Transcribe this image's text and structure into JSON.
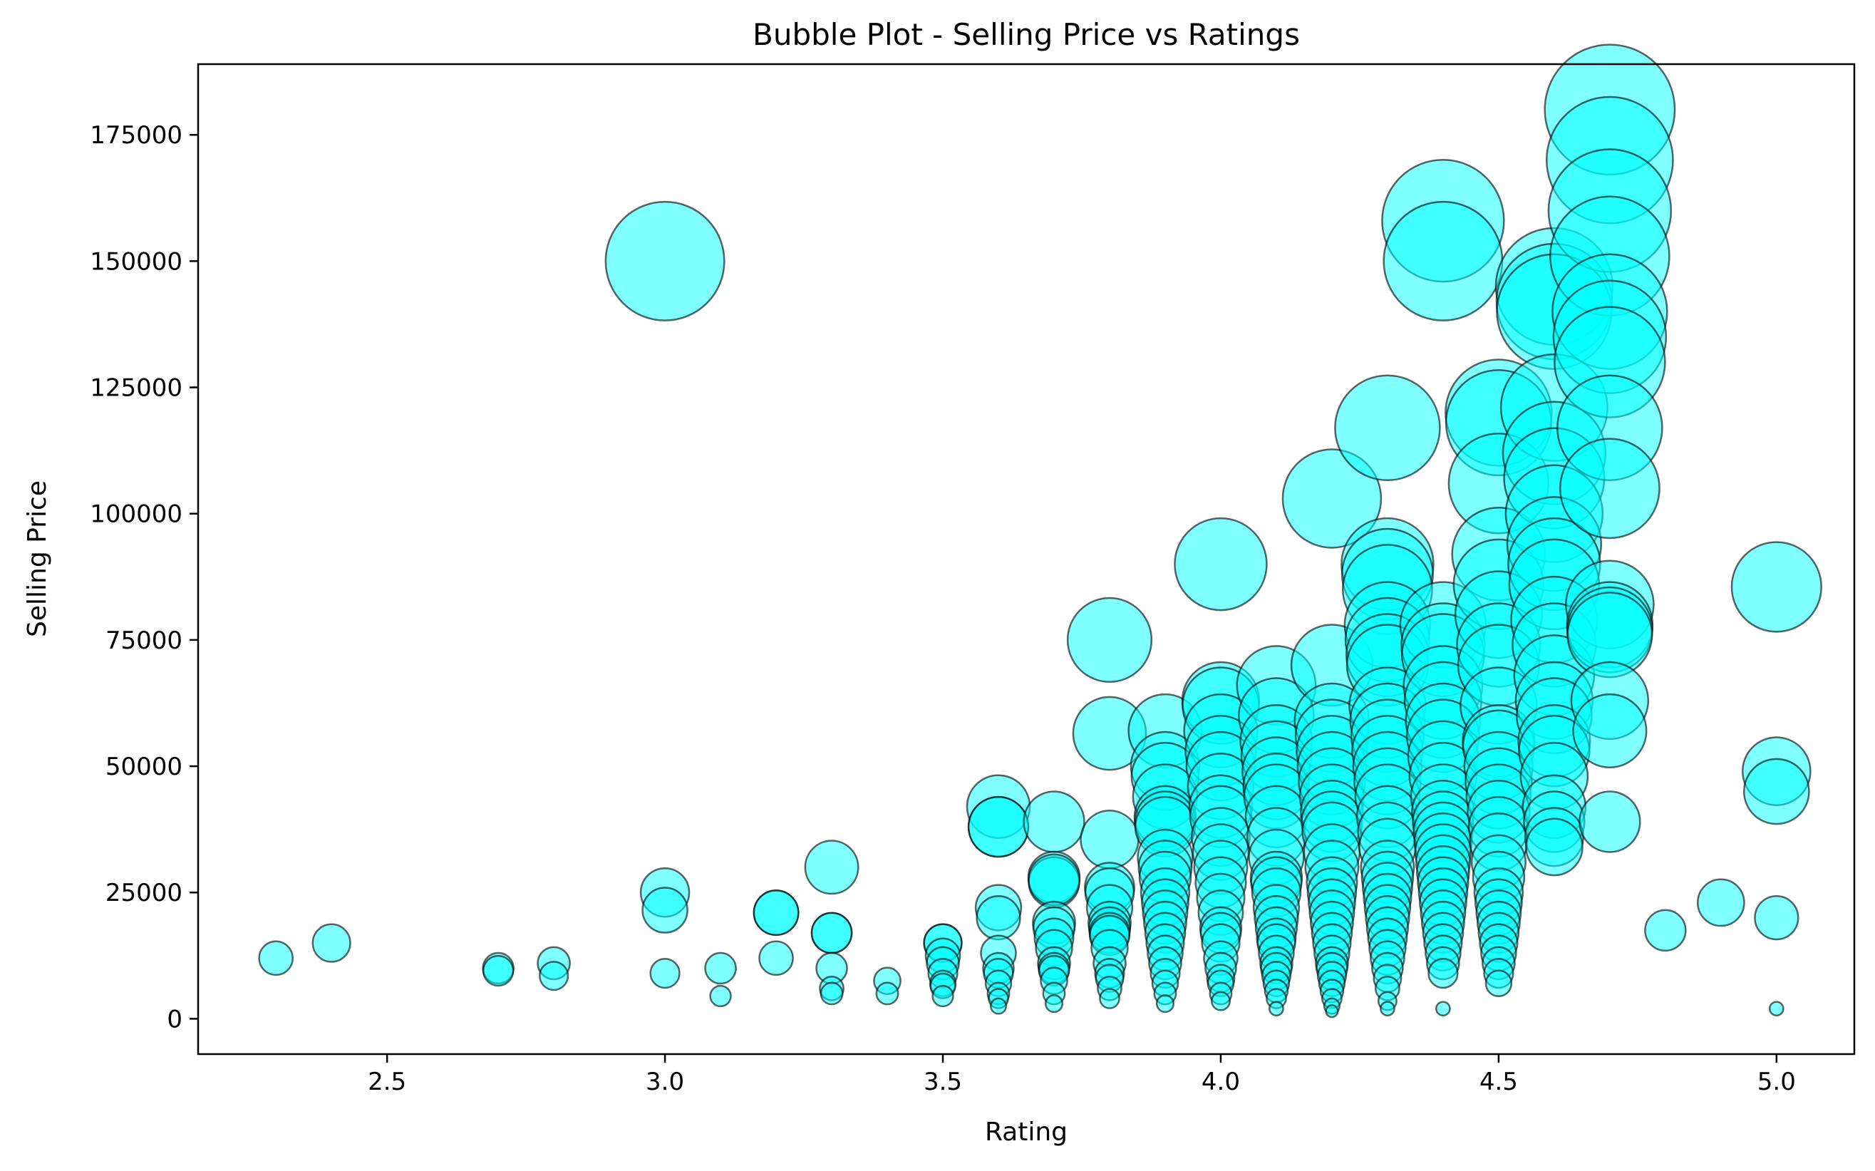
{
  "chart_data": {
    "type": "scatter",
    "variant": "bubble",
    "title": "Bubble Plot - Selling Price vs Ratings",
    "xlabel": "Rating",
    "ylabel": "Selling Price",
    "xlim": [
      2.16,
      5.14
    ],
    "ylim": [
      -7000,
      189000
    ],
    "xticks": [
      2.5,
      3.0,
      3.5,
      4.0,
      4.5,
      5.0
    ],
    "xtick_labels": [
      "2.5",
      "3.0",
      "3.5",
      "4.0",
      "4.5",
      "5.0"
    ],
    "yticks": [
      0,
      25000,
      50000,
      75000,
      100000,
      125000,
      150000,
      175000
    ],
    "ytick_labels": [
      "0",
      "25000",
      "50000",
      "75000",
      "100000",
      "125000",
      "150000",
      "175000"
    ],
    "grid": false,
    "legend": "none",
    "colors": {
      "fill": "#00ffff",
      "edge": "#000000",
      "alpha": 0.5
    },
    "points": [
      {
        "x": 2.3,
        "y": 12000
      },
      {
        "x": 2.4,
        "y": 15000
      },
      {
        "x": 2.7,
        "y": 10000
      },
      {
        "x": 2.7,
        "y": 9500
      },
      {
        "x": 2.8,
        "y": 11000
      },
      {
        "x": 2.8,
        "y": 8500
      },
      {
        "x": 3.0,
        "y": 150000
      },
      {
        "x": 3.0,
        "y": 25000
      },
      {
        "x": 3.0,
        "y": 21500
      },
      {
        "x": 3.0,
        "y": 9000
      },
      {
        "x": 3.1,
        "y": 10000
      },
      {
        "x": 3.1,
        "y": 4500
      },
      {
        "x": 3.2,
        "y": 21000
      },
      {
        "x": 3.2,
        "y": 21000
      },
      {
        "x": 3.2,
        "y": 12000
      },
      {
        "x": 3.3,
        "y": 30000
      },
      {
        "x": 3.3,
        "y": 17000
      },
      {
        "x": 3.3,
        "y": 17000
      },
      {
        "x": 3.3,
        "y": 10000
      },
      {
        "x": 3.3,
        "y": 6000
      },
      {
        "x": 3.3,
        "y": 5000
      },
      {
        "x": 3.4,
        "y": 7500
      },
      {
        "x": 3.4,
        "y": 5000
      },
      {
        "x": 3.5,
        "y": 15000
      },
      {
        "x": 3.5,
        "y": 15000
      },
      {
        "x": 3.5,
        "y": 12500
      },
      {
        "x": 3.5,
        "y": 11000
      },
      {
        "x": 3.5,
        "y": 9000
      },
      {
        "x": 3.5,
        "y": 7000
      },
      {
        "x": 3.5,
        "y": 6500
      },
      {
        "x": 3.5,
        "y": 4500
      },
      {
        "x": 3.6,
        "y": 42000
      },
      {
        "x": 3.6,
        "y": 38000
      },
      {
        "x": 3.6,
        "y": 38000
      },
      {
        "x": 3.6,
        "y": 22000
      },
      {
        "x": 3.6,
        "y": 20000
      },
      {
        "x": 3.6,
        "y": 13000
      },
      {
        "x": 3.6,
        "y": 10000
      },
      {
        "x": 3.6,
        "y": 9000
      },
      {
        "x": 3.6,
        "y": 7000
      },
      {
        "x": 3.6,
        "y": 5000
      },
      {
        "x": 3.6,
        "y": 4000
      },
      {
        "x": 3.6,
        "y": 2500
      },
      {
        "x": 3.7,
        "y": 39000
      },
      {
        "x": 3.7,
        "y": 28000
      },
      {
        "x": 3.7,
        "y": 27000
      },
      {
        "x": 3.7,
        "y": 27500
      },
      {
        "x": 3.7,
        "y": 19000
      },
      {
        "x": 3.7,
        "y": 18000
      },
      {
        "x": 3.7,
        "y": 16000
      },
      {
        "x": 3.7,
        "y": 14000
      },
      {
        "x": 3.7,
        "y": 11000
      },
      {
        "x": 3.7,
        "y": 10000
      },
      {
        "x": 3.7,
        "y": 9500
      },
      {
        "x": 3.7,
        "y": 7500
      },
      {
        "x": 3.7,
        "y": 5000
      },
      {
        "x": 3.7,
        "y": 3000
      },
      {
        "x": 3.8,
        "y": 75000
      },
      {
        "x": 3.8,
        "y": 56500
      },
      {
        "x": 3.8,
        "y": 35500
      },
      {
        "x": 3.8,
        "y": 26000
      },
      {
        "x": 3.8,
        "y": 25000
      },
      {
        "x": 3.8,
        "y": 22000
      },
      {
        "x": 3.8,
        "y": 19000
      },
      {
        "x": 3.8,
        "y": 18000
      },
      {
        "x": 3.8,
        "y": 17000
      },
      {
        "x": 3.8,
        "y": 16500
      },
      {
        "x": 3.8,
        "y": 14000
      },
      {
        "x": 3.8,
        "y": 11000
      },
      {
        "x": 3.8,
        "y": 9000
      },
      {
        "x": 3.8,
        "y": 8000
      },
      {
        "x": 3.8,
        "y": 6000
      },
      {
        "x": 3.8,
        "y": 4000
      },
      {
        "x": 3.9,
        "y": 57000
      },
      {
        "x": 3.9,
        "y": 50000
      },
      {
        "x": 3.9,
        "y": 48000
      },
      {
        "x": 3.9,
        "y": 44000
      },
      {
        "x": 3.9,
        "y": 40000
      },
      {
        "x": 3.9,
        "y": 39000
      },
      {
        "x": 3.9,
        "y": 38000
      },
      {
        "x": 3.9,
        "y": 32000
      },
      {
        "x": 3.9,
        "y": 30000
      },
      {
        "x": 3.9,
        "y": 28000
      },
      {
        "x": 3.9,
        "y": 25000
      },
      {
        "x": 3.9,
        "y": 23000
      },
      {
        "x": 3.9,
        "y": 21000
      },
      {
        "x": 3.9,
        "y": 19000
      },
      {
        "x": 3.9,
        "y": 17000
      },
      {
        "x": 3.9,
        "y": 15000
      },
      {
        "x": 3.9,
        "y": 13000
      },
      {
        "x": 3.9,
        "y": 11000
      },
      {
        "x": 3.9,
        "y": 9000
      },
      {
        "x": 3.9,
        "y": 7000
      },
      {
        "x": 3.9,
        "y": 5000
      },
      {
        "x": 3.9,
        "y": 3000
      },
      {
        "x": 4.0,
        "y": 90000
      },
      {
        "x": 4.0,
        "y": 63000
      },
      {
        "x": 4.0,
        "y": 62000
      },
      {
        "x": 4.0,
        "y": 57000
      },
      {
        "x": 4.0,
        "y": 53000
      },
      {
        "x": 4.0,
        "y": 50000
      },
      {
        "x": 4.0,
        "y": 46000
      },
      {
        "x": 4.0,
        "y": 42000
      },
      {
        "x": 4.0,
        "y": 40000
      },
      {
        "x": 4.0,
        "y": 36000
      },
      {
        "x": 4.0,
        "y": 33000
      },
      {
        "x": 4.0,
        "y": 30000
      },
      {
        "x": 4.0,
        "y": 27000
      },
      {
        "x": 4.0,
        "y": 24000
      },
      {
        "x": 4.0,
        "y": 21000
      },
      {
        "x": 4.0,
        "y": 18000
      },
      {
        "x": 4.0,
        "y": 17000
      },
      {
        "x": 4.0,
        "y": 15000
      },
      {
        "x": 4.0,
        "y": 12000
      },
      {
        "x": 4.0,
        "y": 10000
      },
      {
        "x": 4.0,
        "y": 8000
      },
      {
        "x": 4.0,
        "y": 7000
      },
      {
        "x": 4.0,
        "y": 5000
      },
      {
        "x": 4.0,
        "y": 3500
      },
      {
        "x": 4.1,
        "y": 66000
      },
      {
        "x": 4.1,
        "y": 60000
      },
      {
        "x": 4.1,
        "y": 55000
      },
      {
        "x": 4.1,
        "y": 52000
      },
      {
        "x": 4.1,
        "y": 49000
      },
      {
        "x": 4.1,
        "y": 46000
      },
      {
        "x": 4.1,
        "y": 44000
      },
      {
        "x": 4.1,
        "y": 40000
      },
      {
        "x": 4.1,
        "y": 36000
      },
      {
        "x": 4.1,
        "y": 32000
      },
      {
        "x": 4.1,
        "y": 28000
      },
      {
        "x": 4.1,
        "y": 27000
      },
      {
        "x": 4.1,
        "y": 25000
      },
      {
        "x": 4.1,
        "y": 22000
      },
      {
        "x": 4.1,
        "y": 20000
      },
      {
        "x": 4.1,
        "y": 18000
      },
      {
        "x": 4.1,
        "y": 16000
      },
      {
        "x": 4.1,
        "y": 15000
      },
      {
        "x": 4.1,
        "y": 13000
      },
      {
        "x": 4.1,
        "y": 11000
      },
      {
        "x": 4.1,
        "y": 10000
      },
      {
        "x": 4.1,
        "y": 8500
      },
      {
        "x": 4.1,
        "y": 7000
      },
      {
        "x": 4.1,
        "y": 5500
      },
      {
        "x": 4.1,
        "y": 4000
      },
      {
        "x": 4.1,
        "y": 2000
      },
      {
        "x": 4.2,
        "y": 103000
      },
      {
        "x": 4.2,
        "y": 70000
      },
      {
        "x": 4.2,
        "y": 59000
      },
      {
        "x": 4.2,
        "y": 56000
      },
      {
        "x": 4.2,
        "y": 53000
      },
      {
        "x": 4.2,
        "y": 50000
      },
      {
        "x": 4.2,
        "y": 47000
      },
      {
        "x": 4.2,
        "y": 44000
      },
      {
        "x": 4.2,
        "y": 41000
      },
      {
        "x": 4.2,
        "y": 39000
      },
      {
        "x": 4.2,
        "y": 37000
      },
      {
        "x": 4.2,
        "y": 33000
      },
      {
        "x": 4.2,
        "y": 30000
      },
      {
        "x": 4.2,
        "y": 27000
      },
      {
        "x": 4.2,
        "y": 25000
      },
      {
        "x": 4.2,
        "y": 23000
      },
      {
        "x": 4.2,
        "y": 21000
      },
      {
        "x": 4.2,
        "y": 19000
      },
      {
        "x": 4.2,
        "y": 17000
      },
      {
        "x": 4.2,
        "y": 15000
      },
      {
        "x": 4.2,
        "y": 13000
      },
      {
        "x": 4.2,
        "y": 11000
      },
      {
        "x": 4.2,
        "y": 10000
      },
      {
        "x": 4.2,
        "y": 8500
      },
      {
        "x": 4.2,
        "y": 7000
      },
      {
        "x": 4.2,
        "y": 5500
      },
      {
        "x": 4.2,
        "y": 4000
      },
      {
        "x": 4.2,
        "y": 2500
      },
      {
        "x": 4.2,
        "y": 1500
      },
      {
        "x": 4.3,
        "y": 117000
      },
      {
        "x": 4.3,
        "y": 90000
      },
      {
        "x": 4.3,
        "y": 88000
      },
      {
        "x": 4.3,
        "y": 85000
      },
      {
        "x": 4.3,
        "y": 78000
      },
      {
        "x": 4.3,
        "y": 75000
      },
      {
        "x": 4.3,
        "y": 72000
      },
      {
        "x": 4.3,
        "y": 70000
      },
      {
        "x": 4.3,
        "y": 62000
      },
      {
        "x": 4.3,
        "y": 59000
      },
      {
        "x": 4.3,
        "y": 56000
      },
      {
        "x": 4.3,
        "y": 53000
      },
      {
        "x": 4.3,
        "y": 50000
      },
      {
        "x": 4.3,
        "y": 47000
      },
      {
        "x": 4.3,
        "y": 44000
      },
      {
        "x": 4.3,
        "y": 40000
      },
      {
        "x": 4.3,
        "y": 37000
      },
      {
        "x": 4.3,
        "y": 34000
      },
      {
        "x": 4.3,
        "y": 30000
      },
      {
        "x": 4.3,
        "y": 28000
      },
      {
        "x": 4.3,
        "y": 26000
      },
      {
        "x": 4.3,
        "y": 24000
      },
      {
        "x": 4.3,
        "y": 22000
      },
      {
        "x": 4.3,
        "y": 20000
      },
      {
        "x": 4.3,
        "y": 18000
      },
      {
        "x": 4.3,
        "y": 16000
      },
      {
        "x": 4.3,
        "y": 14000
      },
      {
        "x": 4.3,
        "y": 12000
      },
      {
        "x": 4.3,
        "y": 10000
      },
      {
        "x": 4.3,
        "y": 8000
      },
      {
        "x": 4.3,
        "y": 6000
      },
      {
        "x": 4.3,
        "y": 3500
      },
      {
        "x": 4.3,
        "y": 2000
      },
      {
        "x": 4.4,
        "y": 158000
      },
      {
        "x": 4.4,
        "y": 150000
      },
      {
        "x": 4.4,
        "y": 78000
      },
      {
        "x": 4.4,
        "y": 74000
      },
      {
        "x": 4.4,
        "y": 72000
      },
      {
        "x": 4.4,
        "y": 66000
      },
      {
        "x": 4.4,
        "y": 63000
      },
      {
        "x": 4.4,
        "y": 59000
      },
      {
        "x": 4.4,
        "y": 56000
      },
      {
        "x": 4.4,
        "y": 52000
      },
      {
        "x": 4.4,
        "y": 48000
      },
      {
        "x": 4.4,
        "y": 44000
      },
      {
        "x": 4.4,
        "y": 41000
      },
      {
        "x": 4.4,
        "y": 39000
      },
      {
        "x": 4.4,
        "y": 37000
      },
      {
        "x": 4.4,
        "y": 35000
      },
      {
        "x": 4.4,
        "y": 33000
      },
      {
        "x": 4.4,
        "y": 31000
      },
      {
        "x": 4.4,
        "y": 29000
      },
      {
        "x": 4.4,
        "y": 27000
      },
      {
        "x": 4.4,
        "y": 25000
      },
      {
        "x": 4.4,
        "y": 23000
      },
      {
        "x": 4.4,
        "y": 21000
      },
      {
        "x": 4.4,
        "y": 19000
      },
      {
        "x": 4.4,
        "y": 17000
      },
      {
        "x": 4.4,
        "y": 15000
      },
      {
        "x": 4.4,
        "y": 13000
      },
      {
        "x": 4.4,
        "y": 11000
      },
      {
        "x": 4.4,
        "y": 9000
      },
      {
        "x": 4.4,
        "y": 2000
      },
      {
        "x": 4.5,
        "y": 120000
      },
      {
        "x": 4.5,
        "y": 118000
      },
      {
        "x": 4.5,
        "y": 106000
      },
      {
        "x": 4.5,
        "y": 92000
      },
      {
        "x": 4.5,
        "y": 86000
      },
      {
        "x": 4.5,
        "y": 80000
      },
      {
        "x": 4.5,
        "y": 74000
      },
      {
        "x": 4.5,
        "y": 70000
      },
      {
        "x": 4.5,
        "y": 62000
      },
      {
        "x": 4.5,
        "y": 55000
      },
      {
        "x": 4.5,
        "y": 54000
      },
      {
        "x": 4.5,
        "y": 50000
      },
      {
        "x": 4.5,
        "y": 47000
      },
      {
        "x": 4.5,
        "y": 44000
      },
      {
        "x": 4.5,
        "y": 41000
      },
      {
        "x": 4.5,
        "y": 38000
      },
      {
        "x": 4.5,
        "y": 35000
      },
      {
        "x": 4.5,
        "y": 31000
      },
      {
        "x": 4.5,
        "y": 28000
      },
      {
        "x": 4.5,
        "y": 25000
      },
      {
        "x": 4.5,
        "y": 23000
      },
      {
        "x": 4.5,
        "y": 21000
      },
      {
        "x": 4.5,
        "y": 19000
      },
      {
        "x": 4.5,
        "y": 17000
      },
      {
        "x": 4.5,
        "y": 15000
      },
      {
        "x": 4.5,
        "y": 13000
      },
      {
        "x": 4.5,
        "y": 11000
      },
      {
        "x": 4.5,
        "y": 9000
      },
      {
        "x": 4.5,
        "y": 7000
      },
      {
        "x": 4.6,
        "y": 145000
      },
      {
        "x": 4.6,
        "y": 142000
      },
      {
        "x": 4.6,
        "y": 140000
      },
      {
        "x": 4.6,
        "y": 121000
      },
      {
        "x": 4.6,
        "y": 112000
      },
      {
        "x": 4.6,
        "y": 107000
      },
      {
        "x": 4.6,
        "y": 100000
      },
      {
        "x": 4.6,
        "y": 94000
      },
      {
        "x": 4.6,
        "y": 90000
      },
      {
        "x": 4.6,
        "y": 86000
      },
      {
        "x": 4.6,
        "y": 79000
      },
      {
        "x": 4.6,
        "y": 74000
      },
      {
        "x": 4.6,
        "y": 68000
      },
      {
        "x": 4.6,
        "y": 63000
      },
      {
        "x": 4.6,
        "y": 60000
      },
      {
        "x": 4.6,
        "y": 55000
      },
      {
        "x": 4.6,
        "y": 53000
      },
      {
        "x": 4.6,
        "y": 48000
      },
      {
        "x": 4.6,
        "y": 42000
      },
      {
        "x": 4.6,
        "y": 39000
      },
      {
        "x": 4.6,
        "y": 36000
      },
      {
        "x": 4.6,
        "y": 34000
      },
      {
        "x": 4.7,
        "y": 180000
      },
      {
        "x": 4.7,
        "y": 170000
      },
      {
        "x": 4.7,
        "y": 160000
      },
      {
        "x": 4.7,
        "y": 151000
      },
      {
        "x": 4.7,
        "y": 140000
      },
      {
        "x": 4.7,
        "y": 135000
      },
      {
        "x": 4.7,
        "y": 130000
      },
      {
        "x": 4.7,
        "y": 117000
      },
      {
        "x": 4.7,
        "y": 105000
      },
      {
        "x": 4.7,
        "y": 82000
      },
      {
        "x": 4.7,
        "y": 78000
      },
      {
        "x": 4.7,
        "y": 77000
      },
      {
        "x": 4.7,
        "y": 76000
      },
      {
        "x": 4.7,
        "y": 63000
      },
      {
        "x": 4.7,
        "y": 57000
      },
      {
        "x": 4.7,
        "y": 39000
      },
      {
        "x": 4.8,
        "y": 17500
      },
      {
        "x": 4.9,
        "y": 23000
      },
      {
        "x": 5.0,
        "y": 85500
      },
      {
        "x": 5.0,
        "y": 49000
      },
      {
        "x": 5.0,
        "y": 45000
      },
      {
        "x": 5.0,
        "y": 20000
      },
      {
        "x": 5.0,
        "y": 2000
      }
    ]
  }
}
